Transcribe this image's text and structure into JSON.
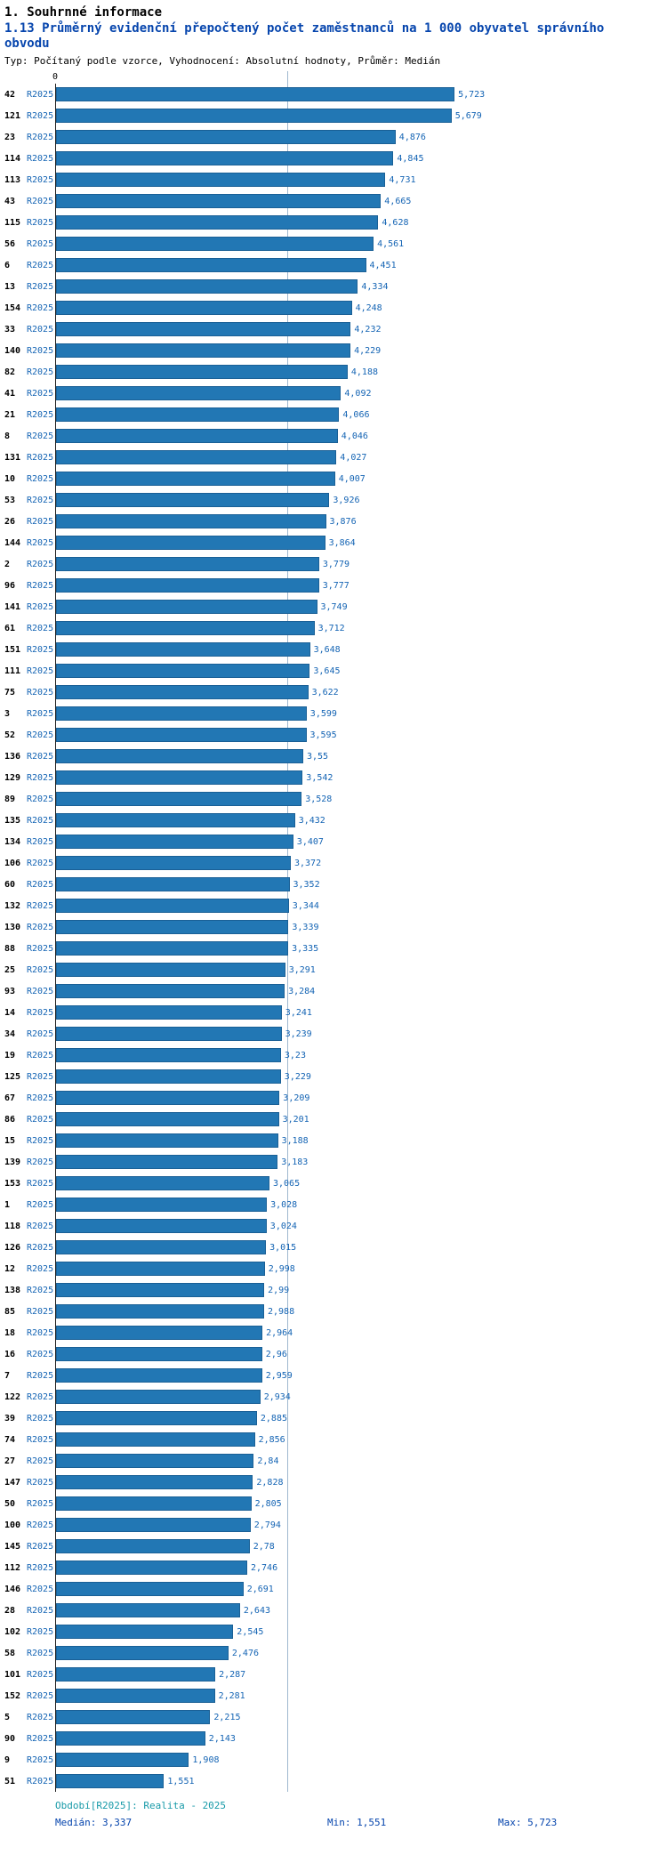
{
  "page": {
    "section_title": "1. Souhrnné informace",
    "chart_title": "1.13 Průměrný evidenční přepočtený počet zaměstnanců na 1 000 obyvatel správního obvodu",
    "meta": "Typ: Počítaný podle vzorce, Vyhodnocení: Absolutní hodnoty, Průměr: Medián"
  },
  "colors": {
    "bar": "#2277b4",
    "bar_border": "#1a6096",
    "title_blue": "#0645ad",
    "label_blue": "#1464b4",
    "footer_teal": "#189aa8",
    "median_line": "#9fb8cf"
  },
  "chart_data": {
    "type": "bar",
    "orientation": "horizontal",
    "series_name": "R2025",
    "axis_origin_label": "0",
    "xlim": [
      0,
      5.8
    ],
    "median_value": 3.337,
    "categories": [
      "42",
      "121",
      "23",
      "114",
      "113",
      "43",
      "115",
      "56",
      "6",
      "13",
      "154",
      "33",
      "140",
      "82",
      "41",
      "21",
      "8",
      "131",
      "10",
      "53",
      "26",
      "144",
      "2",
      "96",
      "141",
      "61",
      "151",
      "111",
      "75",
      "3",
      "52",
      "136",
      "129",
      "89",
      "135",
      "134",
      "106",
      "60",
      "132",
      "130",
      "88",
      "25",
      "93",
      "14",
      "34",
      "19",
      "125",
      "67",
      "86",
      "15",
      "139",
      "153",
      "1",
      "118",
      "126",
      "12",
      "138",
      "85",
      "18",
      "16",
      "7",
      "122",
      "39",
      "74",
      "27",
      "147",
      "50",
      "100",
      "145",
      "112",
      "146",
      "28",
      "102",
      "58",
      "101",
      "152",
      "5",
      "90",
      "9",
      "51"
    ],
    "values": [
      5.723,
      5.679,
      4.876,
      4.845,
      4.731,
      4.665,
      4.628,
      4.561,
      4.451,
      4.334,
      4.248,
      4.232,
      4.229,
      4.188,
      4.092,
      4.066,
      4.046,
      4.027,
      4.007,
      3.926,
      3.876,
      3.864,
      3.779,
      3.777,
      3.749,
      3.712,
      3.648,
      3.645,
      3.622,
      3.599,
      3.595,
      3.55,
      3.542,
      3.528,
      3.432,
      3.407,
      3.372,
      3.352,
      3.344,
      3.339,
      3.335,
      3.291,
      3.284,
      3.241,
      3.239,
      3.23,
      3.229,
      3.209,
      3.201,
      3.188,
      3.183,
      3.065,
      3.028,
      3.024,
      3.015,
      2.998,
      2.99,
      2.988,
      2.964,
      2.96,
      2.959,
      2.934,
      2.885,
      2.856,
      2.84,
      2.828,
      2.805,
      2.794,
      2.78,
      2.746,
      2.691,
      2.643,
      2.545,
      2.476,
      2.287,
      2.281,
      2.215,
      2.143,
      1.908,
      1.551
    ],
    "value_labels": [
      "5,723",
      "5,679",
      "4,876",
      "4,845",
      "4,731",
      "4,665",
      "4,628",
      "4,561",
      "4,451",
      "4,334",
      "4,248",
      "4,232",
      "4,229",
      "4,188",
      "4,092",
      "4,066",
      "4,046",
      "4,027",
      "4,007",
      "3,926",
      "3,876",
      "3,864",
      "3,779",
      "3,777",
      "3,749",
      "3,712",
      "3,648",
      "3,645",
      "3,622",
      "3,599",
      "3,595",
      "3,55",
      "3,542",
      "3,528",
      "3,432",
      "3,407",
      "3,372",
      "3,352",
      "3,344",
      "3,339",
      "3,335",
      "3,291",
      "3,284",
      "3,241",
      "3,239",
      "3,23",
      "3,229",
      "3,209",
      "3,201",
      "3,188",
      "3,183",
      "3,065",
      "3,028",
      "3,024",
      "3,015",
      "2,998",
      "2,99",
      "2,988",
      "2,964",
      "2,96",
      "2,959",
      "2,934",
      "2,885",
      "2,856",
      "2,84",
      "2,828",
      "2,805",
      "2,794",
      "2,78",
      "2,746",
      "2,691",
      "2,643",
      "2,545",
      "2,476",
      "2,287",
      "2,281",
      "2,215",
      "2,143",
      "1,908",
      "1,551"
    ],
    "footer": {
      "period": "Období[R2025]: Realita - 2025",
      "median": "Medián: 3,337",
      "min": "Min: 1,551",
      "max": "Max: 5,723"
    }
  }
}
